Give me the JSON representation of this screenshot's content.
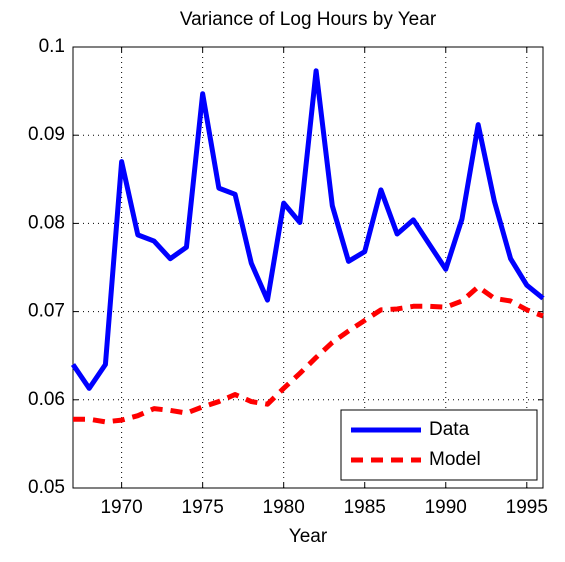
{
  "chart_data": {
    "type": "line",
    "title": "Variance of Log Hours by Year",
    "xlabel": "Year",
    "x": [
      1967,
      1968,
      1969,
      1970,
      1971,
      1972,
      1973,
      1974,
      1975,
      1976,
      1977,
      1978,
      1979,
      1980,
      1981,
      1982,
      1983,
      1984,
      1985,
      1986,
      1987,
      1988,
      1989,
      1990,
      1991,
      1992,
      1993,
      1994,
      1995,
      1996
    ],
    "series": [
      {
        "name": "Data",
        "color": "#0000ff",
        "dash": false,
        "values": [
          0.064,
          0.0613,
          0.064,
          0.087,
          0.0787,
          0.078,
          0.076,
          0.0773,
          0.0947,
          0.084,
          0.0833,
          0.0755,
          0.0713,
          0.0823,
          0.0801,
          0.0973,
          0.082,
          0.0757,
          0.0768,
          0.0838,
          0.0788,
          0.0804,
          0.0776,
          0.0748,
          0.0805,
          0.0912,
          0.0825,
          0.076,
          0.073,
          0.0715
        ]
      },
      {
        "name": "Model",
        "color": "#ff0000",
        "dash": true,
        "values": [
          0.0578,
          0.0578,
          0.0575,
          0.0577,
          0.0582,
          0.059,
          0.0588,
          0.0585,
          0.0592,
          0.0598,
          0.0606,
          0.0598,
          0.0595,
          0.0613,
          0.063,
          0.0648,
          0.0665,
          0.0678,
          0.069,
          0.0702,
          0.0703,
          0.0706,
          0.0706,
          0.0705,
          0.0712,
          0.0728,
          0.0715,
          0.0712,
          0.0702,
          0.0695
        ]
      }
    ],
    "xlim": [
      1967,
      1996
    ],
    "xticks": [
      1970,
      1975,
      1980,
      1985,
      1990,
      1995
    ],
    "ylim": [
      0.05,
      0.1
    ],
    "yticks": [
      0.05,
      0.06,
      0.07,
      0.08,
      0.09,
      0.1
    ],
    "grid": true,
    "legend": "lower right"
  }
}
